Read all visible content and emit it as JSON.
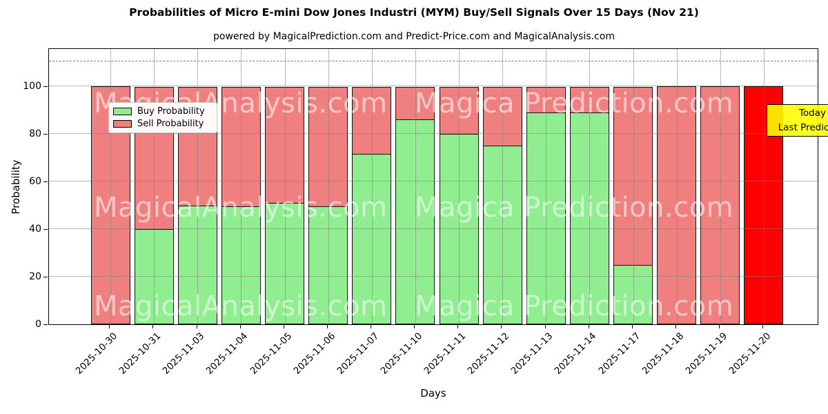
{
  "title": "Probabilities of Micro E-mini Dow Jones Industri (MYM) Buy/Sell Signals Over 15 Days (Nov 21)",
  "subtitle": "powered by MagicalPrediction.com and Predict-Price.com and MagicalAnalysis.com",
  "axes": {
    "x_label": "Days",
    "y_label": "Probability",
    "y_ticks": [
      0,
      20,
      40,
      60,
      80,
      100
    ],
    "ylim": [
      0,
      116
    ]
  },
  "legend": {
    "items": [
      {
        "label": "Buy Probability",
        "color": "#90EE90"
      },
      {
        "label": "Sell Probability",
        "color": "#F08080"
      }
    ]
  },
  "annotation_box": {
    "lines": [
      "Today",
      "Last Prediction"
    ],
    "bg_color": "#FFFF00"
  },
  "watermarks": {
    "left_text": "MagicalAnalysis.com",
    "right_text": "Magica Prediction.com"
  },
  "colors": {
    "buy": "#90EE90",
    "sell": "#F08080",
    "last_bar_sell": "#FF0000",
    "bar_edge": "#101010"
  },
  "chart_data": {
    "type": "bar",
    "stacked": true,
    "title": "Probabilities of Micro E-mini Dow Jones Industri (MYM) Buy/Sell Signals Over 15 Days (Nov 21)",
    "xlabel": "Days",
    "ylabel": "Probability",
    "ylim": [
      0,
      116
    ],
    "grid": true,
    "legend_position": "upper-left",
    "dashed_line_y": 110.5,
    "categories": [
      "2025-10-30",
      "2025-10-31",
      "2025-11-03",
      "2025-11-04",
      "2025-11-05",
      "2025-11-06",
      "2025-11-07",
      "2025-11-10",
      "2025-11-11",
      "2025-11-12",
      "2025-11-13",
      "2025-11-14",
      "2025-11-17",
      "2025-11-18",
      "2025-11-19",
      "2025-11-20"
    ],
    "series": [
      {
        "name": "Buy Probability",
        "color": "#90EE90",
        "values": [
          0,
          40,
          50,
          49.5,
          51,
          49.5,
          71.5,
          86,
          80,
          75,
          89,
          89,
          25,
          0,
          0,
          0
        ]
      },
      {
        "name": "Sell Probability",
        "color": "#F08080",
        "values": [
          100,
          60,
          50,
          50.5,
          49,
          50.5,
          28.5,
          14,
          20,
          25,
          11,
          11,
          75,
          100,
          100,
          100
        ]
      }
    ],
    "last_bar_highlight_color": "#FF0000"
  }
}
